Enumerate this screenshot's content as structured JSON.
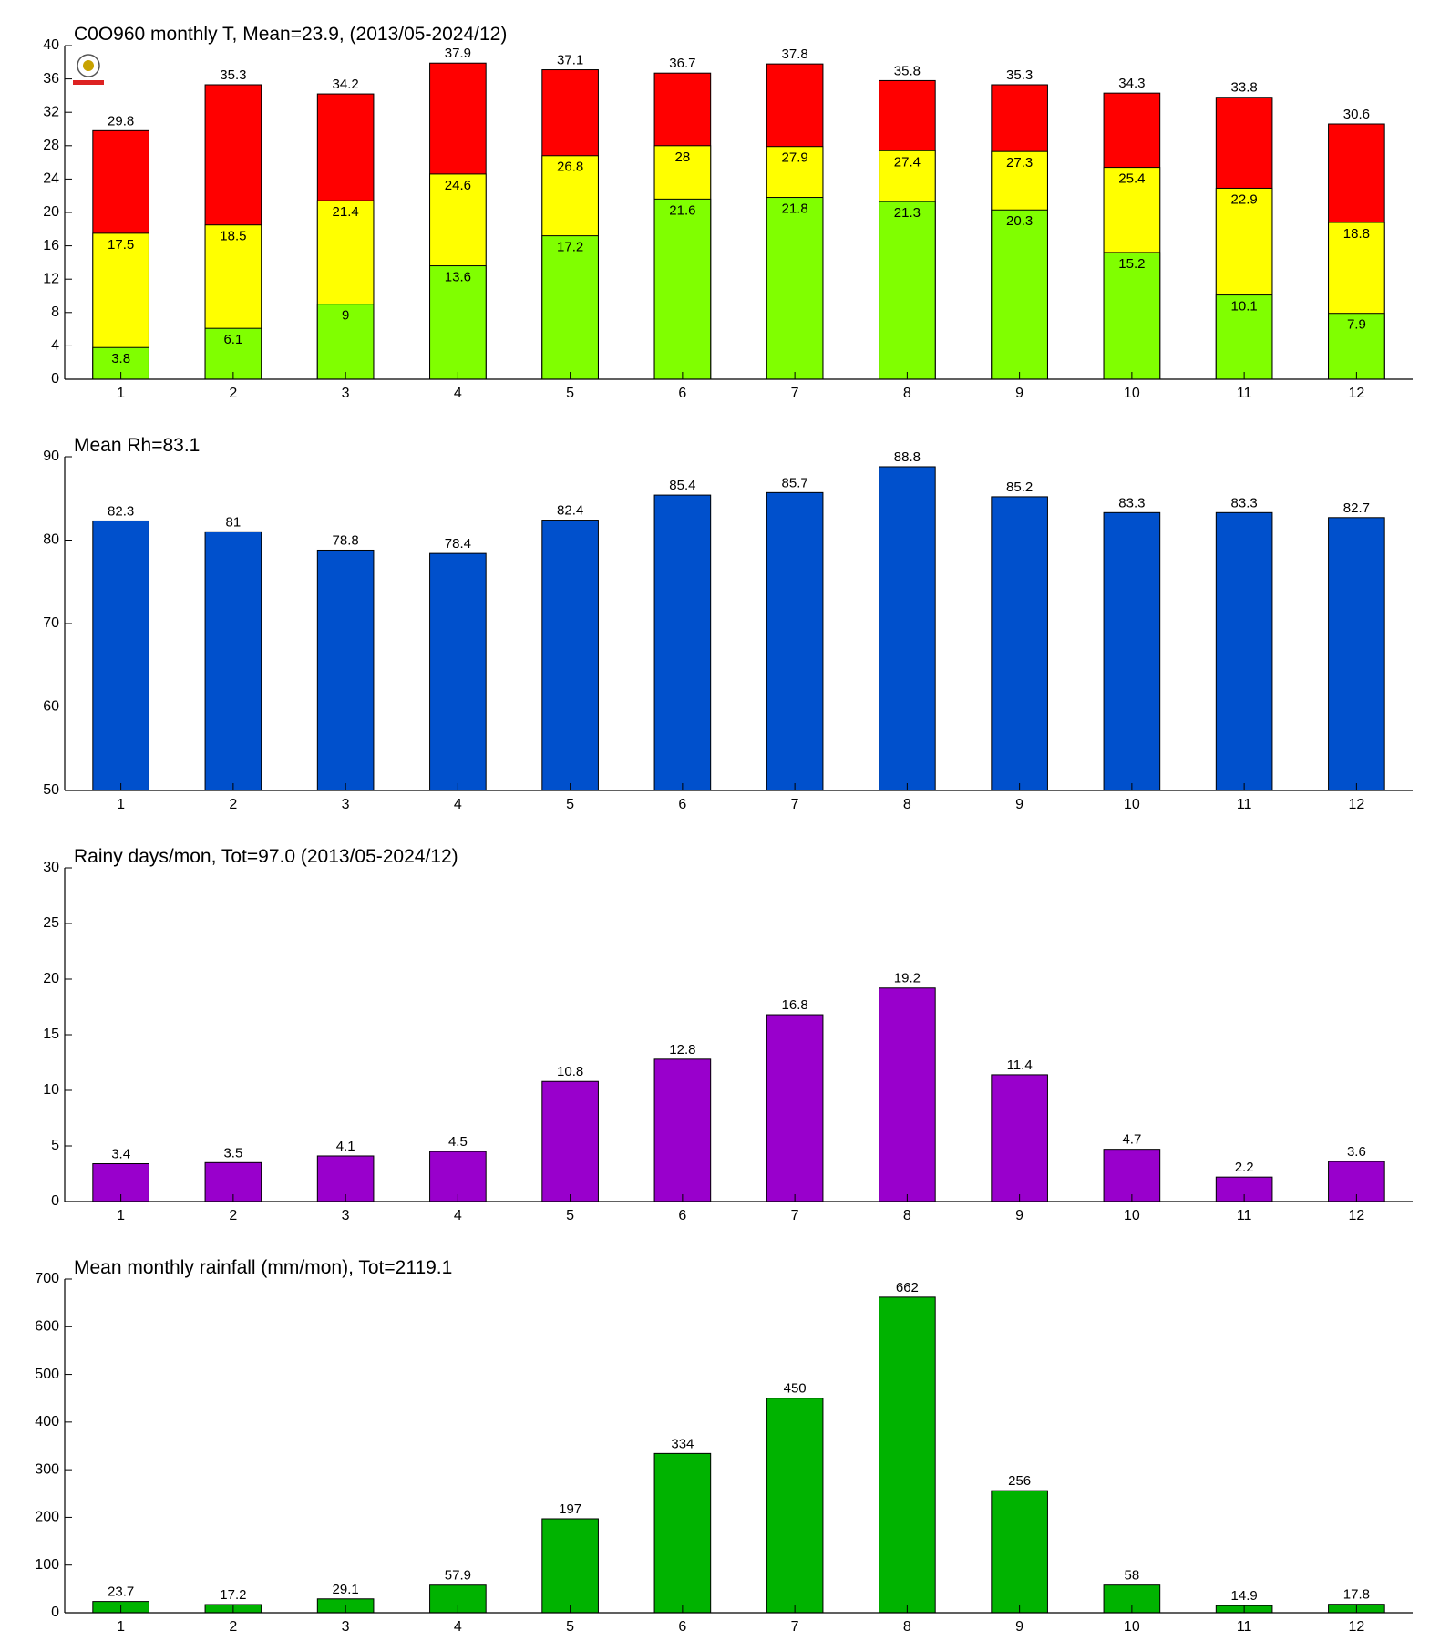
{
  "chart_data": [
    {
      "type": "bar",
      "title": "C0O960 monthly T, Mean=23.9, (2013/05-2024/12)",
      "categories": [
        "1",
        "2",
        "3",
        "4",
        "5",
        "6",
        "7",
        "8",
        "9",
        "10",
        "11",
        "12"
      ],
      "series": [
        {
          "color": "#ff0000",
          "values": [
            29.8,
            35.3,
            34.2,
            37.9,
            37.1,
            36.7,
            37.8,
            35.8,
            35.3,
            34.3,
            33.8,
            30.6
          ]
        },
        {
          "color": "#ffff00",
          "values": [
            17.5,
            18.5,
            21.4,
            24.6,
            26.8,
            28,
            27.9,
            27.4,
            27.3,
            25.4,
            22.9,
            18.8
          ]
        },
        {
          "color": "#80ff00",
          "values": [
            3.8,
            6.1,
            9,
            13.6,
            17.2,
            21.6,
            21.8,
            21.3,
            20.3,
            15.2,
            10.1,
            7.9
          ]
        }
      ],
      "ylim": [
        0,
        40
      ],
      "yticks": [
        0,
        4,
        8,
        12,
        16,
        20,
        24,
        28,
        32,
        36,
        40
      ]
    },
    {
      "type": "bar",
      "title": "Mean Rh=83.1",
      "categories": [
        "1",
        "2",
        "3",
        "4",
        "5",
        "6",
        "7",
        "8",
        "9",
        "10",
        "11",
        "12"
      ],
      "series": [
        {
          "color": "#0050cc",
          "values": [
            82.3,
            81,
            78.8,
            78.4,
            82.4,
            85.4,
            85.7,
            88.8,
            85.2,
            83.3,
            83.3,
            82.7
          ]
        }
      ],
      "ylim": [
        50,
        90
      ],
      "yticks": [
        50,
        60,
        70,
        80,
        90
      ]
    },
    {
      "type": "bar",
      "title": "Rainy days/mon, Tot=97.0 (2013/05-2024/12)",
      "categories": [
        "1",
        "2",
        "3",
        "4",
        "5",
        "6",
        "7",
        "8",
        "9",
        "10",
        "11",
        "12"
      ],
      "series": [
        {
          "color": "#9900cc",
          "values": [
            3.4,
            3.5,
            4.1,
            4.5,
            10.8,
            12.8,
            16.8,
            19.2,
            11.4,
            4.7,
            2.2,
            3.6
          ]
        }
      ],
      "ylim": [
        0,
        30
      ],
      "yticks": [
        0,
        5,
        10,
        15,
        20,
        25,
        30
      ]
    },
    {
      "type": "bar",
      "title": "Mean monthly rainfall (mm/mon), Tot=2119.1",
      "categories": [
        "1",
        "2",
        "3",
        "4",
        "5",
        "6",
        "7",
        "8",
        "9",
        "10",
        "11",
        "12"
      ],
      "series": [
        {
          "color": "#00b300",
          "values": [
            23.7,
            17.2,
            29.1,
            57.9,
            197,
            334,
            450,
            662,
            256,
            58,
            14.9,
            17.8
          ]
        }
      ],
      "ylim": [
        0,
        700
      ],
      "yticks": [
        0,
        100,
        200,
        300,
        400,
        500,
        600,
        700
      ]
    }
  ]
}
